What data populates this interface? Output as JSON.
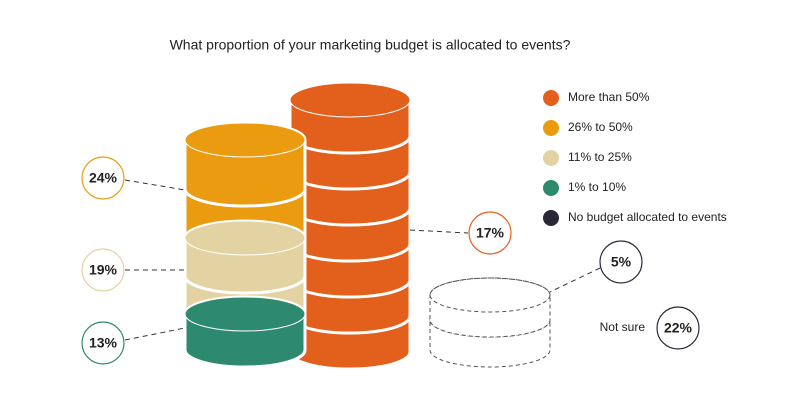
{
  "chart_data": {
    "type": "coin_stack",
    "title": "What proportion of your marketing budget is allocated to events?",
    "categories": [
      "More than 50%",
      "26% to 50%",
      "11% to 25%",
      "1% to 10%",
      "No budget allocated to events"
    ],
    "values": [
      17,
      24,
      19,
      13,
      5
    ],
    "value_labels": [
      "17%",
      "24%",
      "19%",
      "13%",
      "5%"
    ],
    "colors": [
      "#e35f1c",
      "#eb9b0f",
      "#e3d3a3",
      "#2e8a6e",
      "#2a2838"
    ],
    "annotations": [
      {
        "text": "Not sure",
        "value": 22,
        "value_label": "22%"
      }
    ]
  }
}
